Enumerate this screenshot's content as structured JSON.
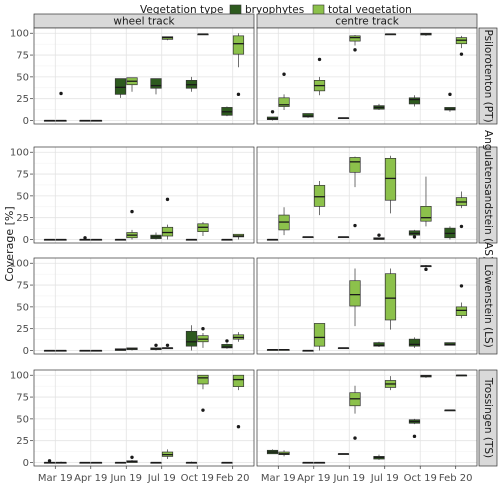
{
  "chart_data": {
    "type": "boxplot",
    "legend": {
      "title": "Vegetation type",
      "position": "top",
      "items": [
        {
          "name": "bryophytes",
          "color": "#2d5a1e"
        },
        {
          "name": "total vegetation",
          "color": "#8cc14b"
        }
      ]
    },
    "ylabel": "Coverage [%]",
    "ylim": [
      -4,
      106
    ],
    "yticks": [
      0,
      25,
      50,
      75,
      100
    ],
    "categories": [
      "Mar 19",
      "Apr 19",
      "Jun 19",
      "Jul 19",
      "Oct 19",
      "Feb 20"
    ],
    "columns": [
      "wheel track",
      "centre track"
    ],
    "rows": [
      "Psilorotenton (PT)",
      "Angulatensandstein (AS)",
      "Löwenstein (LS)",
      "Trossingen (TS)"
    ],
    "grid": true,
    "series_names": [
      "bryophytes",
      "total vegetation"
    ],
    "panels": [
      {
        "row": 0,
        "col": 0,
        "boxes": [
          [
            [
              0,
              0,
              0,
              0,
              0
            ],
            [
              0,
              0,
              0,
              0,
              0
            ]
          ],
          [
            [
              0,
              0,
              0,
              0,
              0
            ],
            [
              0,
              0,
              0,
              0,
              0
            ]
          ],
          [
            [
              26,
              30,
              38,
              48,
              48
            ],
            [
              33,
              41,
              45,
              49,
              49
            ]
          ],
          [
            [
              30,
              37,
              40,
              48,
              48
            ],
            [
              92,
              93,
              95,
              96,
              96
            ]
          ],
          [
            [
              33,
              37,
              41,
              46,
              50
            ],
            [
              99,
              99,
              99,
              99,
              99
            ]
          ],
          [
            [
              5,
              6,
              10,
              15,
              16
            ],
            [
              61,
              76,
              88,
              97,
              100
            ]
          ]
        ],
        "outliers": [
          [
            0,
            1,
            31
          ],
          [
            5,
            1,
            30
          ]
        ]
      },
      {
        "row": 0,
        "col": 1,
        "boxes": [
          [
            [
              0,
              1,
              2,
              4,
              4
            ],
            [
              12,
              16,
              18,
              26,
              30
            ]
          ],
          [
            [
              3,
              4,
              5,
              8,
              8
            ],
            [
              29,
              34,
              40,
              46,
              50
            ]
          ],
          [
            [
              3,
              3,
              3,
              3,
              3
            ],
            [
              86,
              91,
              95,
              97,
              98
            ]
          ],
          [
            [
              12,
              13,
              15,
              17,
              19
            ],
            [
              99,
              99,
              99,
              99,
              99
            ]
          ],
          [
            [
              16,
              19,
              24,
              26,
              29
            ],
            [
              97,
              98,
              99,
              100,
              100
            ]
          ],
          [
            [
              10,
              12,
              13,
              15,
              15
            ],
            [
              83,
              88,
              92,
              95,
              97
            ]
          ]
        ],
        "outliers": [
          [
            0,
            0,
            10
          ],
          [
            0,
            1,
            53
          ],
          [
            1,
            1,
            70
          ],
          [
            2,
            1,
            81
          ],
          [
            5,
            0,
            30
          ],
          [
            5,
            1,
            76
          ]
        ]
      },
      {
        "row": 1,
        "col": 0,
        "boxes": [
          [
            [
              0,
              0,
              0,
              0,
              0
            ],
            [
              0,
              0,
              0,
              0,
              0
            ]
          ],
          [
            [
              0,
              0,
              0,
              0,
              0
            ],
            [
              0,
              0,
              0,
              0,
              0
            ]
          ],
          [
            [
              0,
              0,
              0,
              0,
              0
            ],
            [
              0,
              2,
              5,
              8,
              11
            ]
          ],
          [
            [
              0,
              1,
              3,
              5,
              8
            ],
            [
              0,
              4,
              8,
              14,
              17
            ]
          ],
          [
            [
              0,
              0,
              0,
              0,
              0
            ],
            [
              4,
              9,
              14,
              18,
              20
            ]
          ],
          [
            [
              0,
              0,
              0,
              0,
              0
            ],
            [
              0,
              3,
              4,
              6,
              6
            ]
          ]
        ],
        "outliers": [
          [
            1,
            0,
            2
          ],
          [
            2,
            1,
            32
          ],
          [
            3,
            1,
            46
          ]
        ]
      },
      {
        "row": 1,
        "col": 1,
        "boxes": [
          [
            [
              0,
              0,
              0,
              0,
              0
            ],
            [
              5,
              11,
              20,
              28,
              37
            ]
          ],
          [
            [
              3,
              3,
              3,
              3,
              3
            ],
            [
              28,
              38,
              49,
              62,
              67
            ]
          ],
          [
            [
              3,
              3,
              3,
              3,
              3
            ],
            [
              60,
              77,
              89,
              94,
              95
            ]
          ],
          [
            [
              0,
              0,
              1,
              2,
              2
            ],
            [
              30,
              45,
              70,
              93,
              96
            ]
          ],
          [
            [
              4,
              5,
              7,
              10,
              11
            ],
            [
              15,
              21,
              25,
              38,
              72
            ]
          ],
          [
            [
              0,
              2,
              7,
              13,
              15
            ],
            [
              36,
              39,
              43,
              48,
              55
            ]
          ]
        ],
        "outliers": [
          [
            2,
            1,
            16
          ],
          [
            3,
            0,
            5
          ],
          [
            4,
            0,
            3
          ],
          [
            5,
            1,
            15
          ]
        ]
      },
      {
        "row": 2,
        "col": 0,
        "boxes": [
          [
            [
              0,
              0,
              0,
              0,
              0
            ],
            [
              0,
              0,
              0,
              0,
              0
            ]
          ],
          [
            [
              0,
              0,
              0,
              0,
              0
            ],
            [
              0,
              0,
              0,
              0,
              0
            ]
          ],
          [
            [
              0,
              0,
              1,
              2,
              2
            ],
            [
              0,
              1,
              2,
              3,
              3
            ]
          ],
          [
            [
              0,
              1,
              2,
              3,
              3
            ],
            [
              2,
              2,
              3,
              3,
              3
            ]
          ],
          [
            [
              0,
              5,
              10,
              22,
              29
            ],
            [
              3,
              10,
              13,
              17,
              20
            ]
          ],
          [
            [
              2,
              3,
              4,
              7,
              8
            ],
            [
              10,
              13,
              15,
              18,
              21
            ]
          ]
        ],
        "outliers": [
          [
            3,
            0,
            6
          ],
          [
            3,
            1,
            6
          ],
          [
            4,
            1,
            25
          ],
          [
            5,
            0,
            11
          ]
        ]
      },
      {
        "row": 2,
        "col": 1,
        "boxes": [
          [
            [
              0,
              0,
              1,
              1,
              1
            ],
            [
              1,
              1,
              1,
              1,
              1
            ]
          ],
          [
            [
              0,
              0,
              0,
              0,
              0
            ],
            [
              0,
              5,
              15,
              31,
              31
            ]
          ],
          [
            [
              3,
              3,
              3,
              3,
              3
            ],
            [
              28,
              51,
              64,
              80,
              94
            ]
          ],
          [
            [
              4,
              5,
              6,
              9,
              10
            ],
            [
              24,
              35,
              60,
              88,
              94
            ]
          ],
          [
            [
              3,
              5,
              7,
              13,
              15
            ],
            [
              95,
              96,
              97,
              97,
              98
            ]
          ],
          [
            [
              6,
              6,
              7,
              9,
              9
            ],
            [
              37,
              40,
              46,
              50,
              55
            ]
          ]
        ],
        "outliers": [
          [
            4,
            1,
            93
          ],
          [
            5,
            1,
            74
          ]
        ]
      },
      {
        "row": 3,
        "col": 0,
        "boxes": [
          [
            [
              0,
              0,
              0,
              0,
              0
            ],
            [
              0,
              0,
              0,
              0,
              1
            ]
          ],
          [
            [
              0,
              0,
              0,
              0,
              0
            ],
            [
              0,
              0,
              0,
              0,
              0
            ]
          ],
          [
            [
              0,
              0,
              0,
              0,
              0
            ],
            [
              0,
              0,
              1,
              2,
              3
            ]
          ],
          [
            [
              0,
              0,
              0,
              0,
              0
            ],
            [
              4,
              7,
              9,
              12,
              15
            ]
          ],
          [
            [
              0,
              0,
              0,
              0,
              1
            ],
            [
              84,
              90,
              97,
              100,
              100
            ]
          ],
          [
            [
              0,
              0,
              0,
              0,
              0
            ],
            [
              83,
              87,
              95,
              100,
              100
            ]
          ]
        ],
        "outliers": [
          [
            0,
            0,
            2
          ],
          [
            2,
            1,
            6
          ],
          [
            4,
            1,
            60
          ],
          [
            5,
            1,
            41
          ]
        ]
      },
      {
        "row": 3,
        "col": 1,
        "boxes": [
          [
            [
              10,
              10,
              12,
              14,
              15
            ],
            [
              7,
              9,
              10,
              12,
              14
            ]
          ],
          [
            [
              0,
              0,
              0,
              0,
              0
            ],
            [
              0,
              0,
              0,
              0,
              0
            ]
          ],
          [
            [
              10,
              10,
              10,
              10,
              10
            ],
            [
              56,
              65,
              73,
              80,
              88
            ]
          ],
          [
            [
              3,
              4,
              6,
              7,
              9
            ],
            [
              83,
              86,
              90,
              94,
              99
            ]
          ],
          [
            [
              44,
              45,
              47,
              49,
              50
            ],
            [
              97,
              98,
              99,
              100,
              100
            ]
          ],
          [
            [
              60,
              60,
              60,
              60,
              60
            ],
            [
              100,
              100,
              100,
              100,
              100
            ]
          ]
        ],
        "outliers": [
          [
            2,
            1,
            28
          ],
          [
            4,
            0,
            30
          ]
        ]
      }
    ]
  }
}
